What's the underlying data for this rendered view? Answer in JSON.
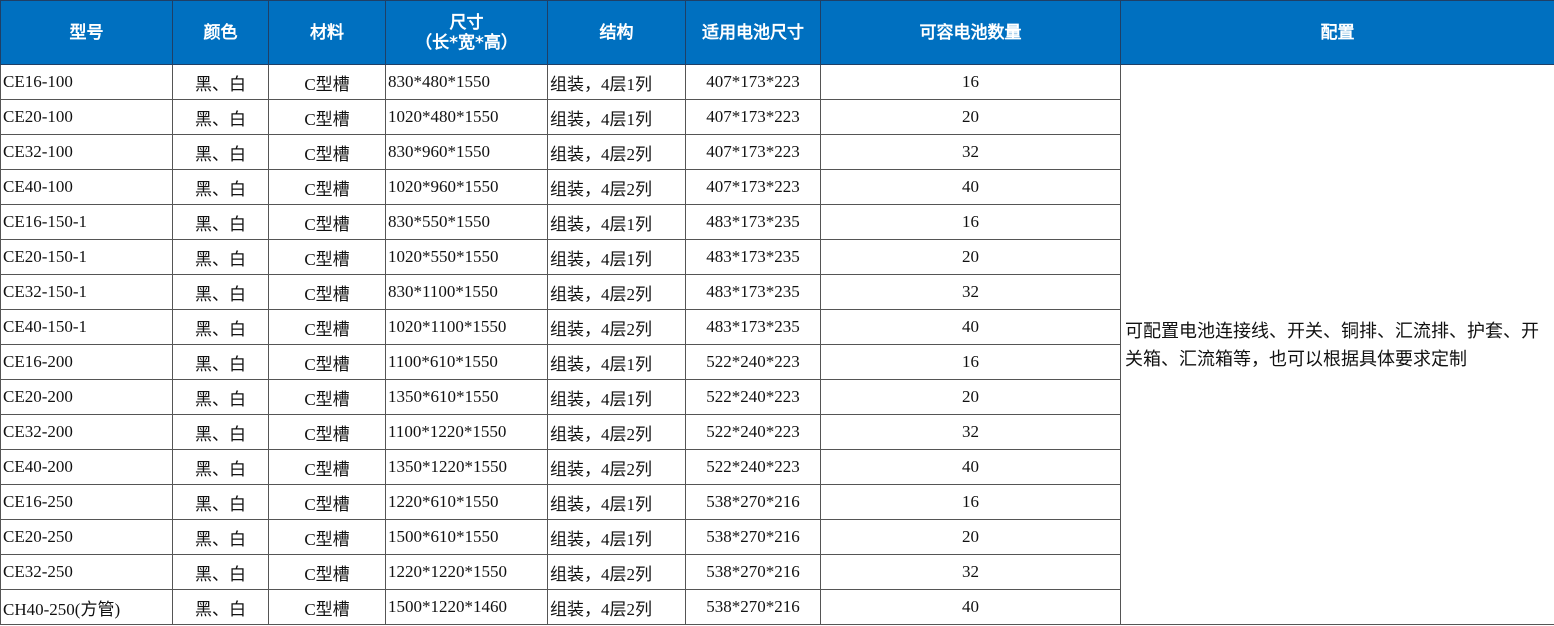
{
  "colors": {
    "header_bg": "#0070C0",
    "header_text": "#FFFFFF"
  },
  "headers": [
    "型号",
    "颜色",
    "材料",
    "尺寸",
    "结构",
    "适用电池尺寸",
    "可容电池数量",
    "配置"
  ],
  "size_header_sub": "（长*宽*高）",
  "rows": [
    [
      "CE16-100",
      "黑、白",
      "C型槽",
      "830*480*1550",
      "组装，4层1列",
      "407*173*223",
      "16"
    ],
    [
      "CE20-100",
      "黑、白",
      "C型槽",
      "1020*480*1550",
      "组装，4层1列",
      "407*173*223",
      "20"
    ],
    [
      "CE32-100",
      "黑、白",
      "C型槽",
      "830*960*1550",
      "组装，4层2列",
      "407*173*223",
      "32"
    ],
    [
      "CE40-100",
      "黑、白",
      "C型槽",
      "1020*960*1550",
      "组装，4层2列",
      "407*173*223",
      "40"
    ],
    [
      "CE16-150-1",
      "黑、白",
      "C型槽",
      "830*550*1550",
      "组装，4层1列",
      "483*173*235",
      "16"
    ],
    [
      "CE20-150-1",
      "黑、白",
      "C型槽",
      "1020*550*1550",
      "组装，4层1列",
      "483*173*235",
      "20"
    ],
    [
      "CE32-150-1",
      "黑、白",
      "C型槽",
      "830*1100*1550",
      "组装，4层2列",
      "483*173*235",
      "32"
    ],
    [
      "CE40-150-1",
      "黑、白",
      "C型槽",
      "1020*1100*1550",
      "组装，4层2列",
      "483*173*235",
      "40"
    ],
    [
      "CE16-200",
      "黑、白",
      "C型槽",
      "1100*610*1550",
      "组装，4层1列",
      "522*240*223",
      "16"
    ],
    [
      "CE20-200",
      "黑、白",
      "C型槽",
      "1350*610*1550",
      "组装，4层1列",
      "522*240*223",
      "20"
    ],
    [
      "CE32-200",
      "黑、白",
      "C型槽",
      "1100*1220*1550",
      "组装，4层2列",
      "522*240*223",
      "32"
    ],
    [
      "CE40-200",
      "黑、白",
      "C型槽",
      "1350*1220*1550",
      "组装，4层2列",
      "522*240*223",
      "40"
    ],
    [
      "CE16-250",
      "黑、白",
      "C型槽",
      "1220*610*1550",
      "组装，4层1列",
      "538*270*216",
      "16"
    ],
    [
      "CE20-250",
      "黑、白",
      "C型槽",
      "1500*610*1550",
      "组装，4层1列",
      "538*270*216",
      "20"
    ],
    [
      "CE32-250",
      "黑、白",
      "C型槽",
      "1220*1220*1550",
      "组装，4层2列",
      "538*270*216",
      "32"
    ],
    [
      "CH40-250(方管)",
      "黑、白",
      "C型槽",
      "1500*1220*1460",
      "组装，4层2列",
      "538*270*216",
      "40"
    ]
  ],
  "config_text": "可配置电池连接线、开关、铜排、汇流排、护套、开关箱、汇流箱等，也可以根据具体要求定制"
}
